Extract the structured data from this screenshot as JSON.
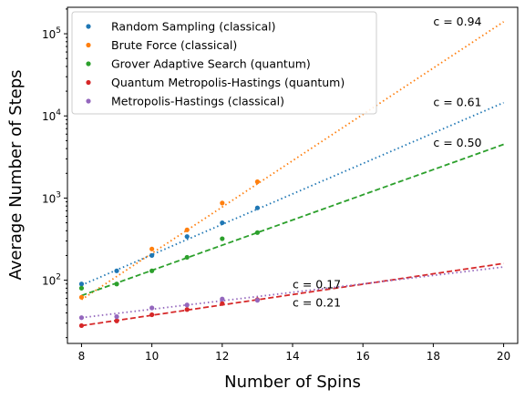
{
  "chart_data": {
    "type": "scatter",
    "xlabel": "Number of Spins",
    "ylabel": "Average Number of Steps",
    "xlim": [
      7.6,
      20.4
    ],
    "ylim": [
      17,
      210000
    ],
    "yscale": "log",
    "xticks": [
      8,
      10,
      12,
      14,
      16,
      18,
      20
    ],
    "xtick_labels": [
      "8",
      "10",
      "12",
      "14",
      "16",
      "18",
      "20"
    ],
    "yticks": [
      100,
      1000,
      10000,
      100000
    ],
    "ytick_labels": [
      {
        "base": "10",
        "exp": "2"
      },
      {
        "base": "10",
        "exp": "3"
      },
      {
        "base": "10",
        "exp": "4"
      },
      {
        "base": "10",
        "exp": "5"
      }
    ],
    "legend_position": "top-left",
    "series": [
      {
        "name": "Random Sampling (classical)",
        "color": "#1f77b4",
        "x": [
          8,
          9,
          10,
          11,
          12,
          13
        ],
        "y": [
          90,
          130,
          200,
          340,
          500,
          760
        ],
        "fit": {
          "style": "dotted",
          "x": [
            8,
            20
          ],
          "y": [
            87,
            14500
          ]
        }
      },
      {
        "name": "Brute Force (classical)",
        "color": "#ff7f0e",
        "x": [
          8,
          10,
          11,
          12,
          13
        ],
        "y": [
          62,
          240,
          410,
          870,
          1580
        ],
        "fit": {
          "style": "dotted",
          "x": [
            8,
            20
          ],
          "y": [
            58,
            140000
          ]
        }
      },
      {
        "name": "Grover Adaptive Search (quantum)",
        "color": "#2ca02c",
        "x": [
          8,
          9,
          10,
          11,
          12,
          13
        ],
        "y": [
          80,
          90,
          130,
          190,
          320,
          380
        ],
        "fit": {
          "style": "dashed",
          "x": [
            8,
            20
          ],
          "y": [
            65,
            4500
          ]
        }
      },
      {
        "name": "Quantum Metropolis-Hastings (quantum)",
        "color": "#d62728",
        "x": [
          8,
          9,
          10,
          11,
          12,
          13
        ],
        "y": [
          28,
          32,
          38,
          44,
          52,
          58
        ],
        "fit": {
          "style": "dashed",
          "x": [
            8,
            20
          ],
          "y": [
            28,
            160
          ]
        }
      },
      {
        "name": "Metropolis-Hastings (classical)",
        "color": "#9467bd",
        "x": [
          8,
          9,
          10,
          11,
          12,
          13
        ],
        "y": [
          35,
          36,
          46,
          50,
          59,
          57
        ],
        "fit": {
          "style": "dotted",
          "x": [
            8,
            20
          ],
          "y": [
            35,
            145
          ]
        }
      }
    ],
    "annotations": [
      {
        "text": "c = 0.94",
        "x": 18.0,
        "y": 140000
      },
      {
        "text": "c = 0.61",
        "x": 18.0,
        "y": 14500
      },
      {
        "text": "c = 0.50",
        "x": 18.0,
        "y": 4650
      },
      {
        "text": "c = 0.17",
        "x": 14.0,
        "y": 88
      },
      {
        "text": "c = 0.21",
        "x": 14.0,
        "y": 53
      }
    ]
  }
}
